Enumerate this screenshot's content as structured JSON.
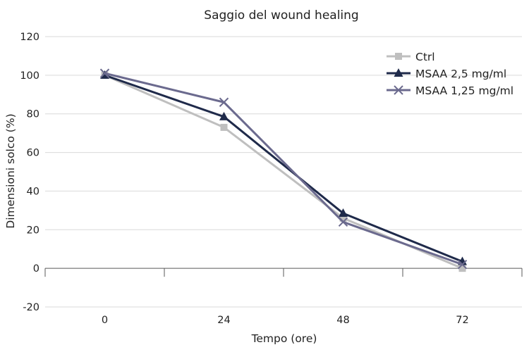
{
  "chart_data": {
    "type": "line",
    "title": "Saggio del wound healing",
    "xlabel": "Tempo (ore)",
    "ylabel": "Dimensioni solco (%)",
    "categories": [
      "0",
      "24",
      "48",
      "72"
    ],
    "ylim": [
      -20,
      120
    ],
    "yticks": [
      "120",
      "100",
      "80",
      "60",
      "40",
      "20",
      "0",
      "-20"
    ],
    "grid": true,
    "legend_position": "top-right",
    "series": [
      {
        "name": "Ctrl",
        "values": [
          100,
          73,
          26,
          0
        ],
        "color": "#bfbfbf",
        "marker": "square"
      },
      {
        "name": "MSAA 2,5 mg/ml",
        "values": [
          100,
          78.5,
          28.5,
          3.5
        ],
        "color": "#1f2a4a",
        "marker": "triangle"
      },
      {
        "name": "MSAA 1,25 mg/ml",
        "values": [
          101,
          86,
          24,
          2
        ],
        "color": "#6b6a8e",
        "marker": "x"
      }
    ]
  }
}
